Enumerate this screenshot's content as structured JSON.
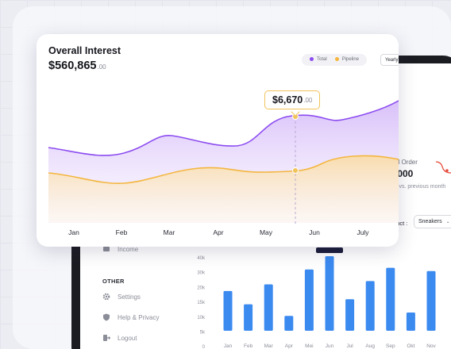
{
  "overall": {
    "title": "Overall Interest",
    "amount_main": "$560,865",
    "amount_cents": ".00",
    "legend": [
      {
        "label": "Total",
        "color": "#8c4cf0"
      },
      {
        "label": "Pipeline",
        "color": "#f4b63e"
      }
    ],
    "period": "Yearly",
    "tooltip_main": "$6,670",
    "tooltip_cents": ".00",
    "months": [
      "Jan",
      "Feb",
      "Mar",
      "Apr",
      "May",
      "Jun",
      "July"
    ]
  },
  "back": {
    "order_label": "al Order",
    "order_value": ".000",
    "order_change": "vs. previous month",
    "product_label": "duct :",
    "product_value": "Sneakers",
    "sidebar": {
      "income": "Income",
      "section": "OTHER",
      "settings": "Settings",
      "help": "Help & Privacy",
      "logout": "Logout"
    },
    "bar_chart": {
      "y_ticks": [
        "40k",
        "30k",
        "20k",
        "15k",
        "10k",
        "5k",
        "0"
      ],
      "categories": [
        "Jan",
        "Feb",
        "Mar",
        "Apr",
        "Mei",
        "Jun",
        "Jul",
        "Aug",
        "Sep",
        "Okt",
        "Nov"
      ],
      "values": [
        24,
        16,
        28,
        9,
        37,
        45,
        19,
        30,
        38,
        11,
        36
      ],
      "color": "#3b8af0"
    }
  },
  "colors": {
    "accent": "#8c4cf0",
    "pipeline": "#f4b63e",
    "bar": "#3b8af0"
  }
}
